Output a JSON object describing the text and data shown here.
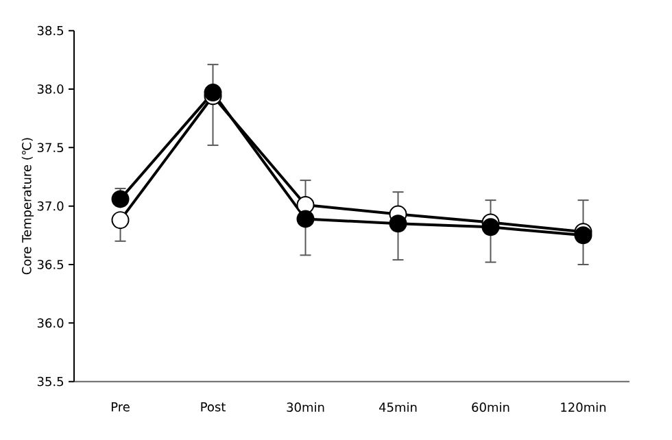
{
  "chart_data": {
    "type": "line",
    "ylabel": "Core Temperature (℃)",
    "categories": [
      "Pre",
      "Post",
      "30min",
      "45min",
      "60min",
      "120min"
    ],
    "series": [
      {
        "color": "#ffffff",
        "values": [
          36.88,
          37.94,
          37.01,
          36.93,
          36.86,
          36.78
        ],
        "errors": [
          [
            36.7,
            36.88
          ],
          [
            37.52,
            37.94
          ],
          [
            37.01,
            37.22
          ],
          [
            36.93,
            37.12
          ],
          [
            36.86,
            37.05
          ],
          [
            36.78,
            37.05
          ]
        ]
      },
      {
        "color": "#000000",
        "values": [
          37.06,
          37.97,
          36.89,
          36.85,
          36.82,
          36.75
        ],
        "errors": [
          [
            37.06,
            37.15
          ],
          [
            37.97,
            38.21
          ],
          [
            36.58,
            36.89
          ],
          [
            36.54,
            36.85
          ],
          [
            36.52,
            36.82
          ],
          [
            36.5,
            36.75
          ]
        ]
      }
    ],
    "ylim": [
      35.5,
      38.5
    ],
    "yticks": [
      35.5,
      {
        "value": 36,
        "label": "36.0"
      },
      36.5,
      {
        "value": 37,
        "label": "37.0"
      },
      37.5,
      {
        "value": 38,
        "label": "38.0"
      },
      38.5
    ],
    "marker": "circle",
    "line_style": "solid",
    "grid": false
  }
}
